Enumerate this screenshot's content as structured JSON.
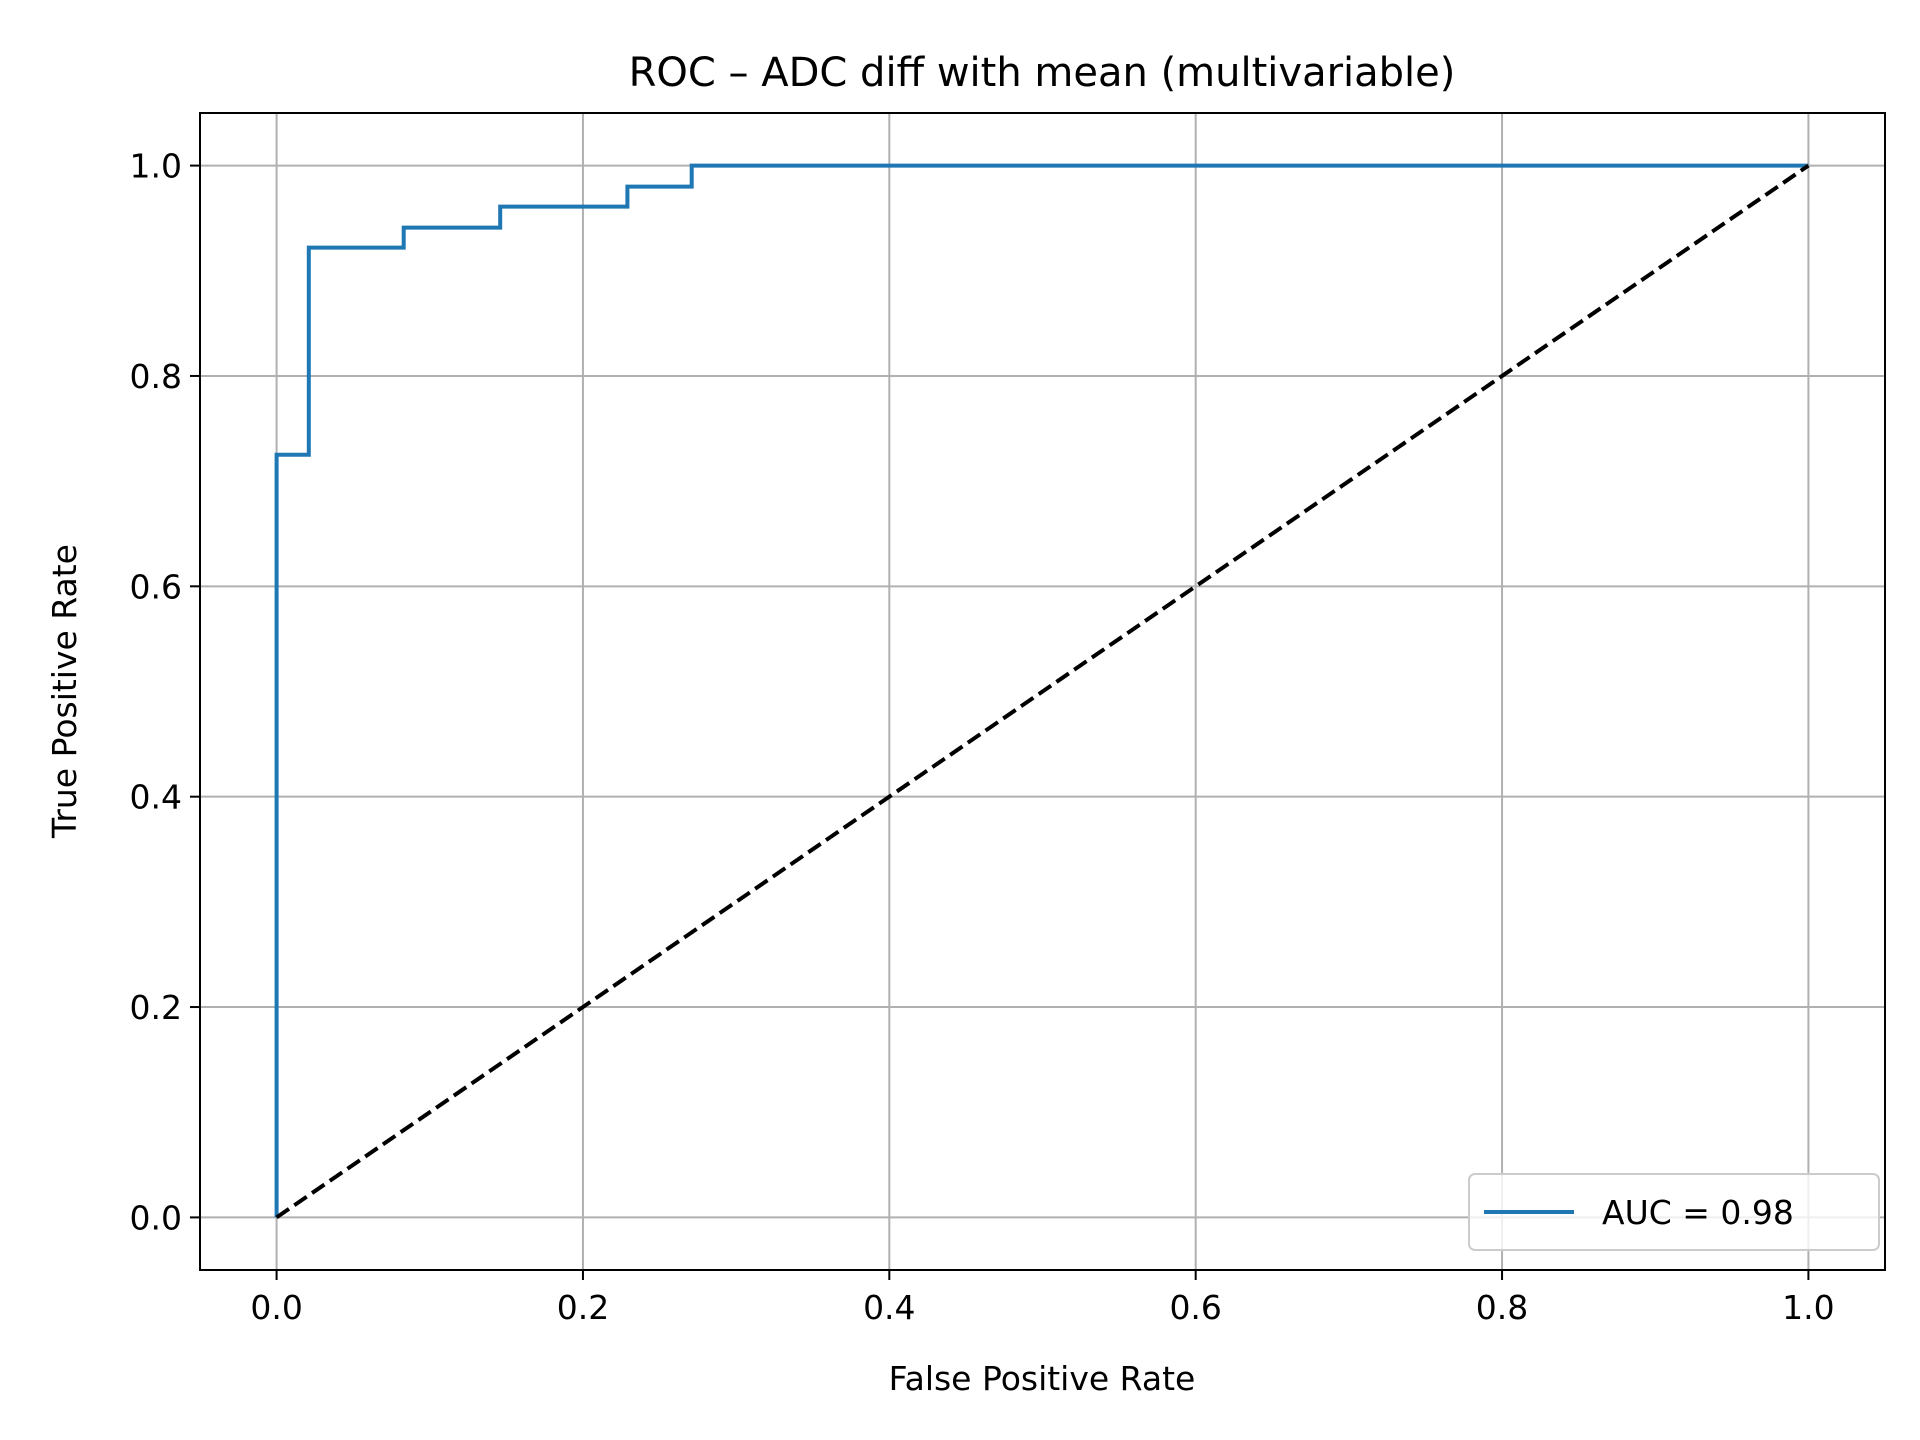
{
  "chart_data": {
    "type": "line",
    "title": "ROC – ADC diff with mean (multivariable)",
    "xlabel": "False Positive Rate",
    "ylabel": "True Positive Rate",
    "xlim": [
      -0.05,
      1.05
    ],
    "ylim": [
      -0.05,
      1.05
    ],
    "xticks": [
      0.0,
      0.2,
      0.4,
      0.6,
      0.8,
      1.0
    ],
    "xtick_labels": [
      "0.0",
      "0.2",
      "0.4",
      "0.6",
      "0.8",
      "1.0"
    ],
    "yticks": [
      0.0,
      0.2,
      0.4,
      0.6,
      0.8,
      1.0
    ],
    "ytick_labels": [
      "0.0",
      "0.2",
      "0.4",
      "0.6",
      "0.8",
      "1.0"
    ],
    "grid": true,
    "legend_position": "lower-right",
    "series": [
      {
        "name": "AUC = 0.98",
        "color": "#1f77b4",
        "line_style": "solid",
        "x": [
          0.0,
          0.0,
          0.021,
          0.021,
          0.083,
          0.083,
          0.146,
          0.146,
          0.229,
          0.229,
          0.271,
          0.271,
          1.0
        ],
        "y": [
          0.0,
          0.725,
          0.725,
          0.922,
          0.922,
          0.941,
          0.941,
          0.961,
          0.961,
          0.98,
          0.98,
          1.0,
          1.0
        ]
      },
      {
        "color": "#000000",
        "line_style": "dashed",
        "x": [
          0.0,
          1.0
        ],
        "y": [
          0.0,
          1.0
        ]
      }
    ]
  }
}
